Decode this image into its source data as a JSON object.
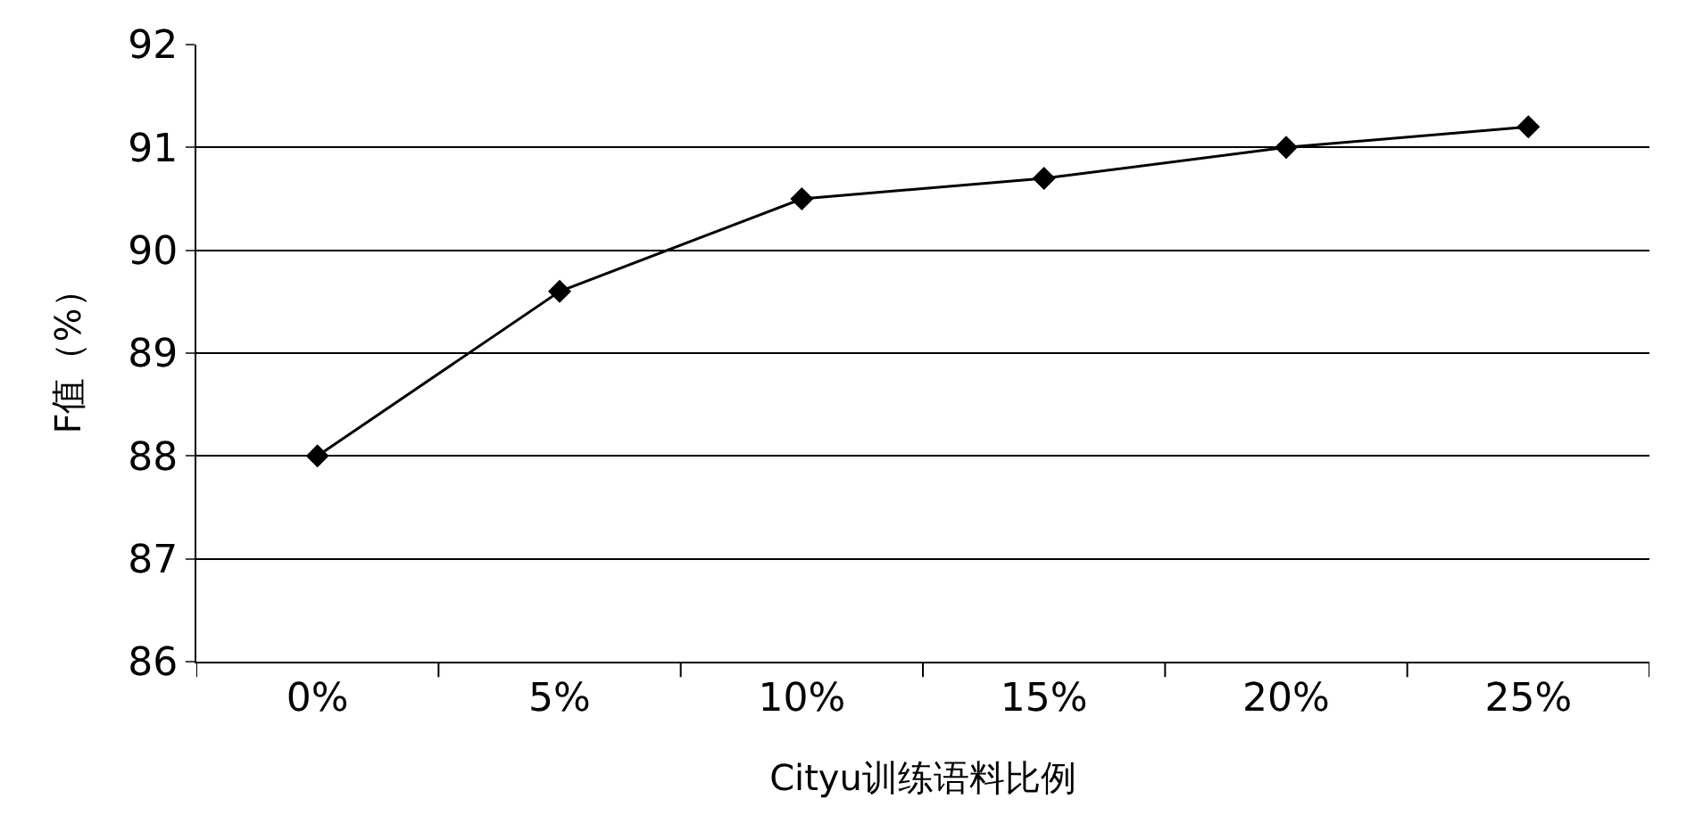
{
  "chart_data": {
    "type": "line",
    "xlabel": "Cityu训练语料比例",
    "ylabel": "F值（%）",
    "categories": [
      "0%",
      "5%",
      "10%",
      "15%",
      "20%",
      "25%"
    ],
    "series": [
      {
        "color": "#000000",
        "values": [
          88.0,
          89.6,
          90.5,
          90.7,
          91.0,
          91.2
        ]
      }
    ],
    "ylim": [
      86,
      92
    ],
    "yticks": [
      86,
      87,
      88,
      89,
      90,
      91,
      92
    ],
    "grid": "y",
    "legend": false,
    "marker": "diamond",
    "line_style": "solid"
  }
}
